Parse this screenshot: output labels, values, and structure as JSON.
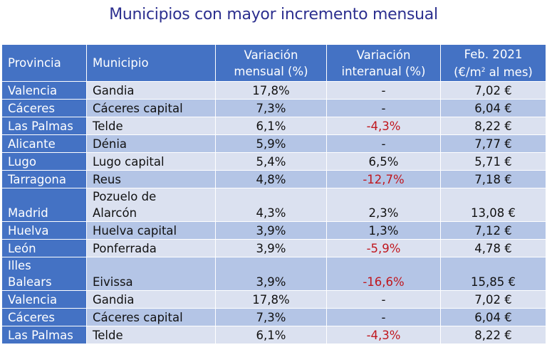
{
  "title": "Municipios con mayor incremento mensual",
  "header": {
    "provincia": "Provincia",
    "municipio": "Municipio",
    "var_mensual_1": "Variación",
    "var_mensual_2": "mensual (%)",
    "var_interanual_1": "Variación",
    "var_interanual_2": "interanual (%)",
    "precio_1": "Feb. 2021",
    "precio_2a": "(€/m",
    "precio_sup": "2",
    "precio_2b": " al mes)"
  },
  "rows": [
    {
      "provincia": "Valencia",
      "municipio": "Gandia",
      "mensual": "17,8%",
      "interanual": "-",
      "precio": "7,02 €"
    },
    {
      "provincia": "Cáceres",
      "municipio": "Cáceres capital",
      "mensual": "7,3%",
      "interanual": "-",
      "precio": "6,04 €"
    },
    {
      "provincia": "Las Palmas",
      "municipio": "Telde",
      "mensual": "6,1%",
      "interanual": "-4,3%",
      "precio": "8,22 €"
    },
    {
      "provincia": "Alicante",
      "municipio": "Dénia",
      "mensual": "5,9%",
      "interanual": "-",
      "precio": "7,77 €"
    },
    {
      "provincia": "Lugo",
      "municipio": "Lugo capital",
      "mensual": "5,4%",
      "interanual": "6,5%",
      "precio": "5,71 €"
    },
    {
      "provincia": "Tarragona",
      "municipio": "Reus",
      "mensual": "4,8%",
      "interanual": "-12,7%",
      "precio": "7,18 €"
    },
    {
      "provincia": "Madrid",
      "municipio_1": "Pozuelo de",
      "municipio_2": "Alarcón",
      "mensual": "4,3%",
      "interanual": "2,3%",
      "precio": "13,08 €"
    },
    {
      "provincia": "Huelva",
      "municipio": "Huelva capital",
      "mensual": "3,9%",
      "interanual": "1,3%",
      "precio": "7,12 €"
    },
    {
      "provincia": "León",
      "municipio": "Ponferrada",
      "mensual": "3,9%",
      "interanual": "-5,9%",
      "precio": "4,78 €"
    },
    {
      "provincia_1": "Illes",
      "provincia_2": "Balears",
      "municipio": "Eivissa",
      "mensual": "3,9%",
      "interanual": "-16,6%",
      "precio": "15,85 €"
    },
    {
      "provincia": "Valencia",
      "municipio": "Gandia",
      "mensual": "17,8%",
      "interanual": "-",
      "precio": "7,02 €"
    },
    {
      "provincia": "Cáceres",
      "municipio": "Cáceres capital",
      "mensual": "7,3%",
      "interanual": "-",
      "precio": "6,04 €"
    },
    {
      "provincia": "Las Palmas",
      "municipio": "Telde",
      "mensual": "6,1%",
      "interanual": "-4,3%",
      "precio": "8,22 €"
    }
  ],
  "colors": {
    "title": "#2c2f8f",
    "header_bg": "#4472c4",
    "row_light": "#dbe1f0",
    "row_dark": "#b4c5e6",
    "negative": "#c0161d"
  }
}
